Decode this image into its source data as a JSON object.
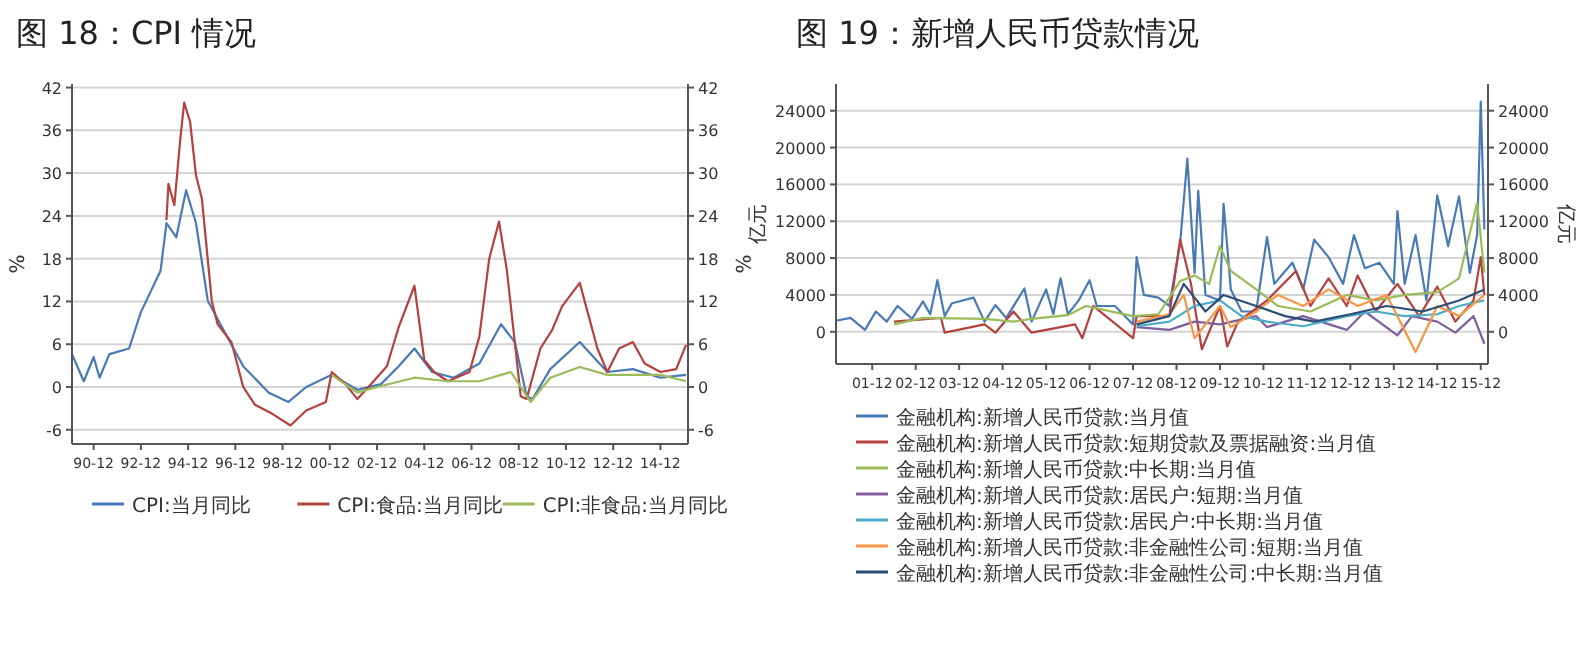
{
  "chart_data": [
    {
      "type": "line",
      "title": "图 18：CPI 情况",
      "ylabel": "%",
      "y2label": "%",
      "grid": "y",
      "legend": "bottom",
      "xlim": [
        "1990-01",
        "2016-02"
      ],
      "xticks": [
        {
          "value": "1990-12",
          "label": "90-12"
        },
        {
          "value": "1992-12",
          "label": "92-12"
        },
        {
          "value": "1994-12",
          "label": "94-12"
        },
        {
          "value": "1996-12",
          "label": "96-12"
        },
        {
          "value": "1998-12",
          "label": "98-12"
        },
        {
          "value": "2000-12",
          "label": "00-12"
        },
        {
          "value": "2002-12",
          "label": "02-12"
        },
        {
          "value": "2004-12",
          "label": "04-12"
        },
        {
          "value": "2006-12",
          "label": "06-12"
        },
        {
          "value": "2008-12",
          "label": "08-12"
        },
        {
          "value": "2010-12",
          "label": "10-12"
        },
        {
          "value": "2012-12",
          "label": "12-12"
        },
        {
          "value": "2014-12",
          "label": "14-12"
        }
      ],
      "ylim": [
        -8,
        42.5
      ],
      "yticks": [
        -6,
        0,
        6,
        12,
        18,
        24,
        30,
        36,
        42
      ],
      "y2lim": [
        -8,
        42.5
      ],
      "y2ticks": [
        -6,
        0,
        6,
        12,
        18,
        24,
        30,
        36,
        42
      ],
      "series": [
        {
          "name": "CPI:当月同比",
          "color": "#4a7ab5",
          "x": [
            "1990-01",
            "1990-07",
            "1990-12",
            "1991-03",
            "1991-08",
            "1992-06",
            "1992-12",
            "1993-10",
            "1994-01",
            "1994-06",
            "1994-11",
            "1995-04",
            "1995-10",
            "1996-06",
            "1997-04",
            "1998-05",
            "1999-03",
            "1999-12",
            "2001-01",
            "2002-02",
            "2003-02",
            "2003-11",
            "2004-07",
            "2005-04",
            "2006-03",
            "2007-04",
            "2008-03",
            "2008-10",
            "2009-04",
            "2009-07",
            "2010-04",
            "2011-07",
            "2012-09",
            "2013-10",
            "2014-12",
            "2016-01"
          ],
          "values": [
            4.6,
            0.8,
            4.2,
            1.3,
            4.6,
            5.4,
            10.5,
            16.3,
            23,
            21,
            27.6,
            23,
            12.1,
            8,
            2.9,
            -0.8,
            -2.1,
            0,
            1.7,
            -0.4,
            0.4,
            2.9,
            5.4,
            2.1,
            1.3,
            3.3,
            8.8,
            6.3,
            -1.3,
            -1.7,
            2.5,
            6.3,
            2.1,
            2.5,
            1.3,
            1.7
          ]
        },
        {
          "name": "CPI:食品:当月同比",
          "color": "#b5413e",
          "x": [
            "1994-01",
            "1994-02",
            "1994-05",
            "1994-08",
            "1994-10",
            "1995-01",
            "1995-04",
            "1995-07",
            "1995-12",
            "1996-03",
            "1996-10",
            "1997-04",
            "1997-10",
            "1998-07",
            "1999-04",
            "1999-12",
            "2000-10",
            "2001-01",
            "2001-08",
            "2002-02",
            "2002-09",
            "2003-05",
            "2003-11",
            "2004-07",
            "2004-12",
            "2005-05",
            "2005-12",
            "2006-11",
            "2007-04",
            "2007-09",
            "2008-02",
            "2008-06",
            "2009-01",
            "2009-04",
            "2009-11",
            "2010-05",
            "2010-10",
            "2011-07",
            "2011-11",
            "2012-04",
            "2012-09",
            "2013-03",
            "2013-10",
            "2014-04",
            "2014-12",
            "2015-08",
            "2016-01"
          ],
          "values": [
            23.4,
            28.5,
            25.5,
            34.7,
            39.9,
            37.2,
            29.7,
            26.4,
            12.1,
            8.8,
            6.3,
            0,
            -2.5,
            -3.8,
            -5.4,
            -3.3,
            -2.1,
            2.1,
            0.4,
            -1.7,
            0.4,
            2.9,
            8.4,
            14.2,
            3.8,
            2.1,
            0.8,
            2.1,
            7.1,
            18,
            23.2,
            16.3,
            -1.3,
            -1.7,
            5.4,
            8,
            11.3,
            14.6,
            10.5,
            5.4,
            2.1,
            5.4,
            6.3,
            3.3,
            2.1,
            2.5,
            5.9
          ]
        },
        {
          "name": "CPI:非食品:当月同比",
          "color": "#9bbb59",
          "x": [
            "2001-01",
            "2002-02",
            "2002-12",
            "2004-07",
            "2005-12",
            "2007-04",
            "2008-08",
            "2009-06",
            "2010-04",
            "2011-07",
            "2012-09",
            "2014-12",
            "2016-01"
          ],
          "values": [
            1.7,
            -0.8,
            0,
            1.3,
            0.8,
            0.8,
            2.1,
            -2.1,
            1.3,
            2.8,
            1.7,
            1.7,
            0.8
          ]
        }
      ]
    },
    {
      "type": "line",
      "title": "图 19：新增人民币贷款情况",
      "ylabel": "亿元",
      "y2label": "亿元",
      "grid": "y",
      "legend": "bottom",
      "xlim": [
        "2001-02",
        "2016-02"
      ],
      "xticks": [
        {
          "value": "2001-12",
          "label": "01-12"
        },
        {
          "value": "2002-12",
          "label": "02-12"
        },
        {
          "value": "2003-12",
          "label": "03-12"
        },
        {
          "value": "2004-12",
          "label": "04-12"
        },
        {
          "value": "2005-12",
          "label": "05-12"
        },
        {
          "value": "2006-12",
          "label": "06-12"
        },
        {
          "value": "2007-12",
          "label": "07-12"
        },
        {
          "value": "2008-12",
          "label": "08-12"
        },
        {
          "value": "2009-12",
          "label": "09-12"
        },
        {
          "value": "2010-12",
          "label": "10-12"
        },
        {
          "value": "2011-12",
          "label": "11-12"
        },
        {
          "value": "2012-12",
          "label": "12-12"
        },
        {
          "value": "2013-12",
          "label": "13-12"
        },
        {
          "value": "2014-12",
          "label": "14-12"
        },
        {
          "value": "2015-12",
          "label": "15-12"
        }
      ],
      "ylim": [
        -3500,
        26900
      ],
      "yticks": [
        0,
        4000,
        8000,
        12000,
        16000,
        20000,
        24000
      ],
      "y2lim": [
        -3500,
        26900
      ],
      "y2ticks": [
        0,
        4000,
        8000,
        12000,
        16000,
        20000,
        24000
      ],
      "series": [
        {
          "name": "金融机构:新增人民币贷款:当月值",
          "color": "#4a7ab5",
          "x": [
            "2001-02",
            "2001-06",
            "2001-10",
            "2002-01",
            "2002-04",
            "2002-07",
            "2002-11",
            "2003-02",
            "2003-04",
            "2003-06",
            "2003-08",
            "2003-10",
            "2004-04",
            "2004-07",
            "2004-10",
            "2005-01",
            "2005-06",
            "2005-08",
            "2005-12",
            "2006-02",
            "2006-04",
            "2006-06",
            "2006-09",
            "2006-12",
            "2007-02",
            "2007-07",
            "2007-12",
            "2008-01",
            "2008-03",
            "2008-07",
            "2008-10",
            "2009-01",
            "2009-03",
            "2009-05",
            "2009-06",
            "2009-08",
            "2009-12",
            "2010-01",
            "2010-03",
            "2010-06",
            "2010-10",
            "2011-01",
            "2011-03",
            "2011-08",
            "2011-11",
            "2012-02",
            "2012-06",
            "2012-10",
            "2013-01",
            "2013-04",
            "2013-08",
            "2013-12",
            "2014-01",
            "2014-03",
            "2014-06",
            "2014-09",
            "2014-12",
            "2015-03",
            "2015-06",
            "2015-09",
            "2015-11",
            "2015-12",
            "2016-01"
          ],
          "values": [
            1200,
            1500,
            200,
            2200,
            1100,
            2800,
            1400,
            3300,
            1900,
            5600,
            1700,
            3100,
            3700,
            1100,
            2900,
            1500,
            4700,
            1100,
            4600,
            1900,
            5800,
            1900,
            3400,
            5600,
            2800,
            2800,
            800,
            8100,
            4000,
            3700,
            2800,
            9600,
            18800,
            6400,
            15300,
            4000,
            3400,
            13900,
            4600,
            2200,
            2200,
            10300,
            5200,
            7500,
            4600,
            10000,
            8100,
            5200,
            10500,
            6900,
            7500,
            5200,
            13100,
            5200,
            10500,
            3400,
            14800,
            9300,
            14700,
            6400,
            10500,
            25000,
            11100
          ]
        },
        {
          "name": "金融机构:新增人民币贷款:短期贷款及票据融资:当月值",
          "color": "#b5413e",
          "x": [
            "2002-06",
            "2003-07",
            "2003-08",
            "2004-07",
            "2004-10",
            "2005-03",
            "2005-08",
            "2006-08",
            "2006-10",
            "2007-01",
            "2007-12",
            "2008-01",
            "2008-10",
            "2009-01",
            "2009-04",
            "2009-07",
            "2009-12",
            "2010-02",
            "2010-05",
            "2011-01",
            "2011-09",
            "2012-01",
            "2012-06",
            "2012-11",
            "2013-02",
            "2013-07",
            "2014-01",
            "2014-07",
            "2014-12",
            "2015-05",
            "2015-10",
            "2015-12",
            "2016-01"
          ],
          "values": [
            1100,
            1500,
            -100,
            800,
            -100,
            2200,
            -100,
            800,
            -700,
            2800,
            -700,
            1700,
            1700,
            10000,
            5200,
            -1900,
            2800,
            -1600,
            1100,
            3400,
            6600,
            2800,
            5800,
            2800,
            6100,
            2200,
            5200,
            1700,
            4900,
            1100,
            3400,
            8100,
            4000
          ]
        },
        {
          "name": "金融机构:新增人民币贷款:中长期:当月值",
          "color": "#9bbb59",
          "x": [
            "2002-06",
            "2003-02",
            "2004-07",
            "2005-03",
            "2005-08",
            "2006-06",
            "2006-11",
            "2007-12",
            "2008-07",
            "2009-01",
            "2009-05",
            "2009-09",
            "2009-12",
            "2010-03",
            "2010-10",
            "2011-04",
            "2012-01",
            "2012-11",
            "2013-07",
            "2014-03",
            "2014-12",
            "2015-06",
            "2015-11",
            "2016-01"
          ],
          "values": [
            800,
            1500,
            1400,
            1100,
            1400,
            1800,
            2800,
            1700,
            1900,
            5500,
            6100,
            5200,
            9300,
            6600,
            4600,
            2800,
            2200,
            4000,
            3400,
            4000,
            4300,
            5800,
            14000,
            6400
          ]
        },
        {
          "name": "金融机构:新增人民币贷款:居民户:短期:当月值",
          "color": "#7f5f9e",
          "x": [
            "2008-01",
            "2008-10",
            "2009-05",
            "2009-12",
            "2010-10",
            "2011-01",
            "2011-11",
            "2012-11",
            "2013-04",
            "2014-01",
            "2014-05",
            "2014-12",
            "2015-05",
            "2015-10",
            "2016-01"
          ],
          "values": [
            500,
            200,
            1100,
            800,
            1700,
            500,
            1700,
            200,
            2200,
            -400,
            1700,
            1100,
            -100,
            1700,
            -1300
          ]
        },
        {
          "name": "金融机构:新增人民币贷款:居民户:中长期:当月值",
          "color": "#4bacc6",
          "x": [
            "2008-01",
            "2008-10",
            "2009-05",
            "2009-12",
            "2010-06",
            "2011-01",
            "2011-11",
            "2012-11",
            "2013-07",
            "2014-03",
            "2014-12",
            "2015-06",
            "2016-01"
          ],
          "values": [
            600,
            1100,
            2800,
            3400,
            1700,
            1100,
            600,
            1700,
            2200,
            1700,
            1900,
            2800,
            3400
          ]
        },
        {
          "name": "金融机构:新增人民币贷款:非金融性公司:短期:当月值",
          "color": "#f79646",
          "x": [
            "2008-01",
            "2008-10",
            "2009-02",
            "2009-05",
            "2009-12",
            "2010-03",
            "2010-10",
            "2011-04",
            "2011-11",
            "2012-06",
            "2013-02",
            "2013-10",
            "2014-06",
            "2014-12",
            "2015-06",
            "2016-01"
          ],
          "values": [
            1100,
            1900,
            4000,
            -700,
            2800,
            500,
            2200,
            4000,
            2800,
            4600,
            2800,
            4000,
            -2200,
            2800,
            1700,
            4000
          ]
        },
        {
          "name": "金融机构:新增人民币贷款:非金融性公司:中长期:当月值",
          "color": "#2c4d75",
          "x": [
            "2008-01",
            "2008-10",
            "2009-02",
            "2009-08",
            "2010-01",
            "2010-10",
            "2011-06",
            "2012-02",
            "2012-12",
            "2013-10",
            "2014-08",
            "2015-06",
            "2016-01"
          ],
          "values": [
            800,
            1700,
            5200,
            2200,
            4000,
            2800,
            1700,
            1100,
            1900,
            2800,
            2200,
            3400,
            4600
          ]
        }
      ]
    }
  ]
}
